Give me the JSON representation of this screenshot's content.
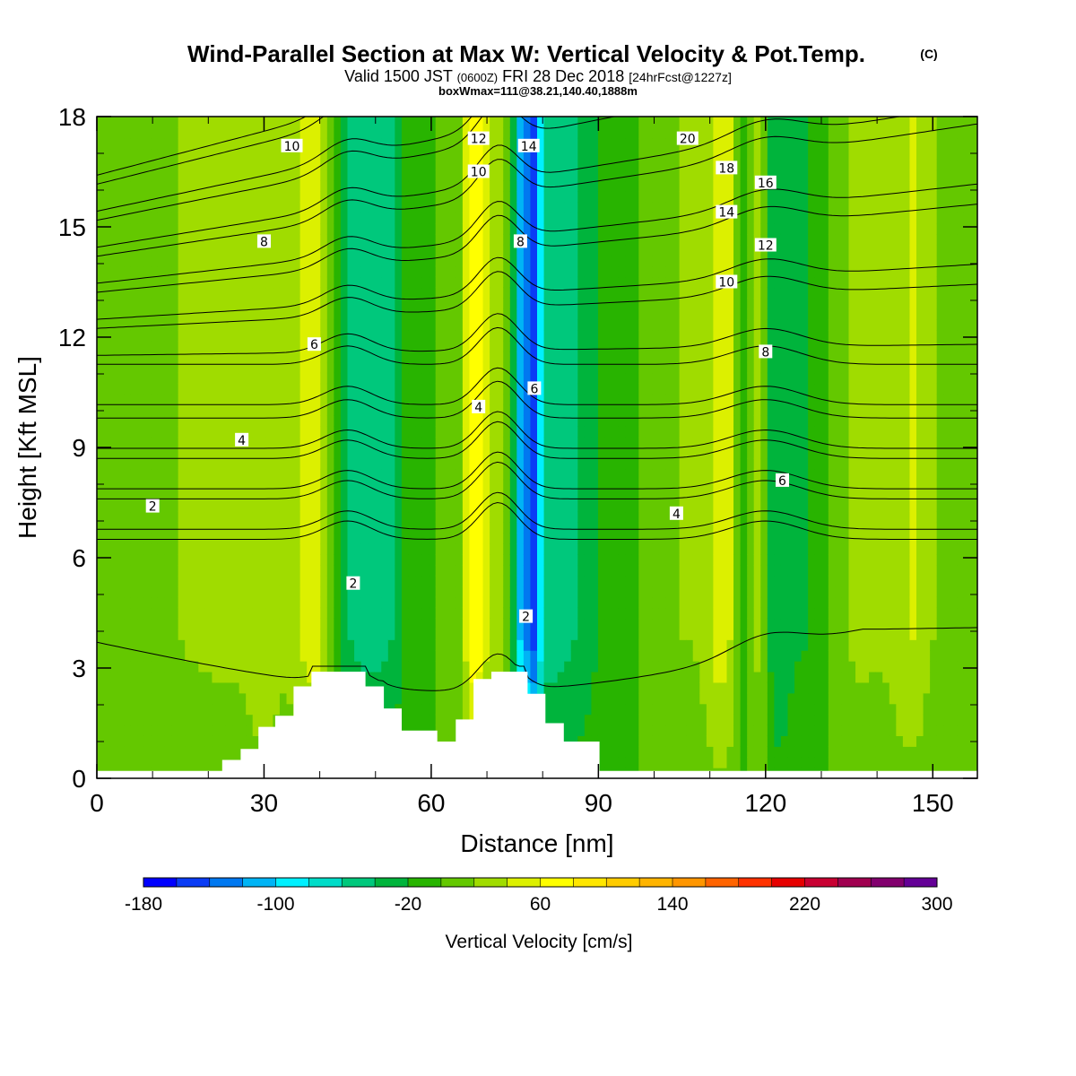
{
  "chart_data": {
    "type": "heatmap",
    "title": "Wind-Parallel Section at Max W: Vertical Velocity & Pot.Temp.",
    "title_mark": "(C)",
    "subtitle_parts": [
      "Valid 1500 JST",
      "(0600Z)",
      "FRI 28 Dec 2018",
      "[24hrFcst@1227z]"
    ],
    "subtitle2": "boxWmax=111@38.21,140.40,1888m",
    "xlabel": "Distance [nm]",
    "ylabel": "Height [Kft MSL]",
    "xlim": [
      0,
      158
    ],
    "ylim": [
      0,
      18
    ],
    "xticks": [
      0,
      30,
      60,
      90,
      120,
      150
    ],
    "yticks": [
      0,
      3,
      6,
      9,
      12,
      15,
      18
    ],
    "x_minor_step": 10,
    "y_minor_step": 1,
    "colorbar": {
      "label": "Vertical Velocity [cm/s]",
      "min": -180,
      "step": 20,
      "tick_labels": [
        "-180",
        "-100",
        "-20",
        "60",
        "140",
        "220",
        "300"
      ],
      "colors": [
        "#0000ff",
        "#0a3cf5",
        "#0078f0",
        "#00b4f5",
        "#00f0ff",
        "#00dcc8",
        "#00c87c",
        "#00b43c",
        "#28b400",
        "#64c800",
        "#a0dc00",
        "#dcf000",
        "#ffff00",
        "#ffe600",
        "#ffcc00",
        "#ffb400",
        "#ff9600",
        "#ff6400",
        "#ff3200",
        "#e60000",
        "#c80032",
        "#a00050",
        "#82006e",
        "#640096"
      ]
    },
    "velocity_field": {
      "background": 10,
      "bands": [
        {
          "x": 4,
          "w": 3,
          "v": -10
        },
        {
          "x": 22,
          "w": 12,
          "v": 15
        },
        {
          "x": 30,
          "w": 3,
          "v": 20
        },
        {
          "x": 39,
          "w": 4,
          "v": 40
        },
        {
          "x": 46,
          "w": 4,
          "v": -50
        },
        {
          "x": 52,
          "w": 4,
          "v": -50
        },
        {
          "x": 60,
          "w": 4,
          "v": -10
        },
        {
          "x": 68,
          "w": 2.2,
          "v": 70
        },
        {
          "x": 72,
          "w": 1.5,
          "v": 20
        },
        {
          "x": 76.5,
          "w": 1.8,
          "v": -110
        },
        {
          "x": 78.6,
          "w": 1.2,
          "v": -90
        },
        {
          "x": 81,
          "w": 4,
          "v": -50
        },
        {
          "x": 87,
          "w": 5,
          "v": -40
        },
        {
          "x": 96,
          "w": 4,
          "v": -10
        },
        {
          "x": 105,
          "w": 5,
          "v": 10
        },
        {
          "x": 112,
          "w": 3,
          "v": 40
        },
        {
          "x": 116,
          "w": 1.5,
          "v": -40
        },
        {
          "x": 118,
          "w": 3,
          "v": 30
        },
        {
          "x": 122,
          "w": 3,
          "v": -50
        },
        {
          "x": 128,
          "w": 4,
          "v": -30
        },
        {
          "x": 137,
          "w": 5,
          "v": 15
        },
        {
          "x": 146,
          "w": 4,
          "v": 30
        }
      ]
    },
    "terrain": {
      "x": [
        0,
        22.5,
        22.5,
        25.8,
        25.8,
        29,
        29,
        32,
        32,
        35.3,
        35.3,
        38.5,
        38.5,
        48.2,
        48.2,
        51.5,
        51.5,
        54.7,
        54.7,
        61.1,
        61.1,
        64.4,
        64.4,
        67.6,
        67.6,
        70.8,
        70.8,
        77.3,
        77.3,
        80.5,
        80.5,
        83.8,
        83.8,
        90.2,
        90.2,
        158
      ],
      "z": [
        0.2,
        0.2,
        0.5,
        0.5,
        0.8,
        0.8,
        1.4,
        1.4,
        1.7,
        1.7,
        2.5,
        2.5,
        2.9,
        2.9,
        2.5,
        2.5,
        1.9,
        1.9,
        1.3,
        1.3,
        1.0,
        1.0,
        1.6,
        1.6,
        2.7,
        2.7,
        2.9,
        2.9,
        2.3,
        2.3,
        1.5,
        1.5,
        1.0,
        1.0,
        0.2,
        0.2
      ]
    },
    "isentrope_levels": [
      0,
      2,
      4,
      6,
      8,
      10,
      12,
      14,
      16,
      18,
      20
    ],
    "contour_labels": [
      {
        "text": "10",
        "x": 35,
        "y": 17.2
      },
      {
        "text": "12",
        "x": 68.5,
        "y": 17.4
      },
      {
        "text": "14",
        "x": 77.5,
        "y": 17.2
      },
      {
        "text": "20",
        "x": 106,
        "y": 17.4
      },
      {
        "text": "10",
        "x": 68.5,
        "y": 16.5
      },
      {
        "text": "18",
        "x": 113,
        "y": 16.6
      },
      {
        "text": "16",
        "x": 120,
        "y": 16.2
      },
      {
        "text": "14",
        "x": 113,
        "y": 15.4
      },
      {
        "text": "8",
        "x": 30,
        "y": 14.6
      },
      {
        "text": "8",
        "x": 76,
        "y": 14.6
      },
      {
        "text": "12",
        "x": 120,
        "y": 14.5
      },
      {
        "text": "10",
        "x": 113,
        "y": 13.5
      },
      {
        "text": "6",
        "x": 39,
        "y": 11.8
      },
      {
        "text": "8",
        "x": 120,
        "y": 11.6
      },
      {
        "text": "6",
        "x": 78.5,
        "y": 10.6
      },
      {
        "text": "4",
        "x": 68.5,
        "y": 10.1
      },
      {
        "text": "4",
        "x": 26,
        "y": 9.2
      },
      {
        "text": "6",
        "x": 123,
        "y": 8.1
      },
      {
        "text": "2",
        "x": 10,
        "y": 7.4
      },
      {
        "text": "4",
        "x": 104,
        "y": 7.2
      },
      {
        "text": "2",
        "x": 46,
        "y": 5.3
      },
      {
        "text": "2",
        "x": 77,
        "y": 4.4
      }
    ]
  }
}
